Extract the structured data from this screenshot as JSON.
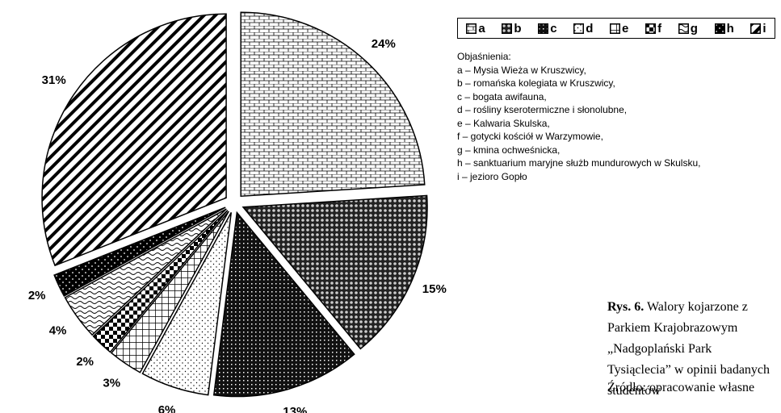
{
  "chart_data": {
    "type": "pie",
    "categories": [
      "a",
      "b",
      "c",
      "d",
      "e",
      "f",
      "g",
      "h",
      "i"
    ],
    "values": [
      24,
      15,
      13,
      6,
      3,
      2,
      4,
      2,
      31
    ],
    "value_labels": [
      "24%",
      "15%",
      "13%",
      "6%",
      "3%",
      "2%",
      "4%",
      "2%",
      "31%"
    ],
    "legend_title": "Objaśnienia:",
    "descriptions": [
      "a – Mysia Wieża w Kruszwicy,",
      "b – romańska kolegiata w Kruszwicy,",
      "c – bogata awifauna,",
      "d – rośliny kserotermiczne i słonolubne,",
      "e – Kalwaria Skulska,",
      "f – gotycki kościół w Warzymowie,",
      "g – kmina ochweśnicka,",
      "h – sanktuarium maryjne służb mundurowych w Skulsku,",
      "i – jezioro Gopło"
    ],
    "caption_label": "Rys. 6.",
    "caption": "Walory kojarzone z Parkiem Krajobrazowym „Nadgoplański Park Tysiąclecia” w opinii badanych studentów",
    "source": "Źródło: opracowanie własne"
  }
}
